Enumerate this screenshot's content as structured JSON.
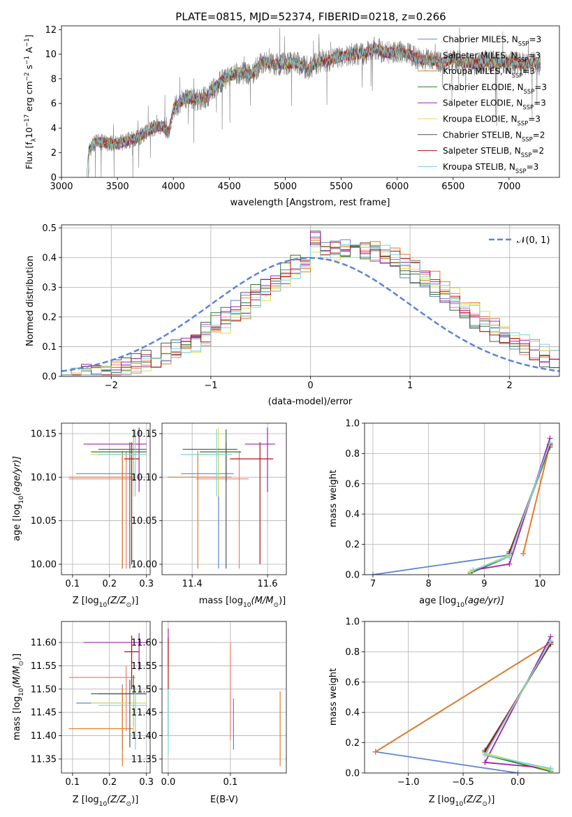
{
  "figure": {
    "title": "PLATE=0815, MJD=52374, FIBERID=0218, z=0.266"
  },
  "colors": {
    "chabrier_miles": "#5b84d6",
    "salpeter_miles": "#f07c70",
    "kroupa_miles": "#e07b23",
    "chabrier_elodie": "#2e7a2e",
    "salpeter_elodie": "#a020b0",
    "kroupa_elodie": "#d9df4a",
    "chabrier_stelib": "#555555",
    "salpeter_stelib": "#b01010",
    "kroupa_stelib": "#78d4e0",
    "grid": "#b0b0b0",
    "gauss": "#5b84d6"
  },
  "chart_data": [
    {
      "id": "spectrum",
      "type": "line",
      "xlabel": "wavelength [Angstrom, rest frame]",
      "ylabel_main": "Flux [f",
      "ylabel_sub": "λ",
      "ylabel_mid": "10",
      "ylabel_exp1": "−17",
      "ylabel_rest": " erg cm",
      "ylabel_exp2": "−2",
      "ylabel_rest2": " s",
      "ylabel_exp3": "−1",
      "ylabel_rest3": " A",
      "ylabel_exp4": "−1",
      "ylabel_end": "]",
      "xlim": [
        3000,
        7450
      ],
      "ylim": [
        0,
        12.3
      ],
      "xticks": [
        "3000",
        "3500",
        "4000",
        "4500",
        "5000",
        "5500",
        "6000",
        "6500",
        "7000"
      ],
      "yticks": [
        "0",
        "2",
        "4",
        "6",
        "8",
        "10",
        "12"
      ],
      "continuum": [
        [
          3225,
          0
        ],
        [
          3240,
          2.0
        ],
        [
          3300,
          2.9
        ],
        [
          3400,
          2.8
        ],
        [
          3500,
          2.7
        ],
        [
          3600,
          3.0
        ],
        [
          3700,
          3.3
        ],
        [
          3800,
          3.9
        ],
        [
          3900,
          4.2
        ],
        [
          3960,
          3.6
        ],
        [
          4000,
          5.6
        ],
        [
          4100,
          6.4
        ],
        [
          4200,
          6.3
        ],
        [
          4300,
          6.5
        ],
        [
          4400,
          7.6
        ],
        [
          4500,
          8.2
        ],
        [
          4600,
          8.5
        ],
        [
          4700,
          8.4
        ],
        [
          4800,
          9.4
        ],
        [
          4900,
          9.2
        ],
        [
          5000,
          9.2
        ],
        [
          5100,
          9.3
        ],
        [
          5200,
          8.8
        ],
        [
          5300,
          9.4
        ],
        [
          5400,
          9.5
        ],
        [
          5500,
          9.8
        ],
        [
          5600,
          10.0
        ],
        [
          5700,
          10.0
        ],
        [
          5800,
          10.5
        ],
        [
          5900,
          10.1
        ],
        [
          6000,
          10.2
        ],
        [
          6100,
          10.0
        ],
        [
          6200,
          9.6
        ],
        [
          6300,
          9.5
        ],
        [
          6400,
          9.3
        ],
        [
          6500,
          9.6
        ],
        [
          6600,
          9.3
        ],
        [
          6700,
          9.2
        ],
        [
          6800,
          9.4
        ],
        [
          6900,
          9.3
        ],
        [
          7000,
          9.4
        ],
        [
          7100,
          9.2
        ],
        [
          7200,
          9.3
        ],
        [
          7280,
          9.2
        ]
      ],
      "legend": [
        {
          "pre": "Chabrier MILES, N",
          "sub": "SSP",
          "post": "=3",
          "color": "chabrier_miles"
        },
        {
          "pre": "Salpeter MILES, N",
          "sub": "SSP",
          "post": "=3",
          "color": "salpeter_miles"
        },
        {
          "pre": "Kroupa MILES, N",
          "sub": "SSP",
          "post": "=3",
          "color": "kroupa_miles"
        },
        {
          "pre": "Chabrier ELODIE, N",
          "sub": "SSP",
          "post": "=3",
          "color": "chabrier_elodie"
        },
        {
          "pre": "Salpeter ELODIE, N",
          "sub": "SSP",
          "post": "=3",
          "color": "salpeter_elodie"
        },
        {
          "pre": "Kroupa ELODIE, N",
          "sub": "SSP",
          "post": "=3",
          "color": "kroupa_elodie"
        },
        {
          "pre": "Chabrier STELIB, N",
          "sub": "SSP",
          "post": "=2",
          "color": "chabrier_stelib"
        },
        {
          "pre": "Salpeter STELIB, N",
          "sub": "SSP",
          "post": "=2",
          "color": "salpeter_stelib"
        },
        {
          "pre": "Kroupa STELIB, N",
          "sub": "SSP",
          "post": "=3",
          "color": "kroupa_stelib"
        }
      ]
    },
    {
      "id": "residuals",
      "type": "histogram",
      "xlabel": "(data-model)/error",
      "ylabel": "Normed distribution",
      "xlim": [
        -2.5,
        2.5
      ],
      "ylim": [
        0,
        0.51
      ],
      "xticks": [
        "−2",
        "−1",
        "0",
        "1",
        "2"
      ],
      "yticks": [
        "0.0",
        "0.1",
        "0.2",
        "0.3",
        "0.4",
        "0.5"
      ],
      "legend_label": "𝒩(0, 1)",
      "bin_width": 0.1
    },
    {
      "id": "age_vs_Z",
      "type": "errorbar",
      "xlabel_pre": "Z [log",
      "xlabel_sub": "10",
      "xlabel_post": "(Z/Z",
      "xlabel_sun": "⊙",
      "xlabel_end": ")]",
      "ylabel_pre": "age  [log",
      "ylabel_sub": "10",
      "ylabel_post": "(age/yr)]",
      "xlim": [
        0.07,
        0.31
      ],
      "ylim": [
        9.988,
        10.162
      ],
      "xticks": [
        "0.1",
        "0.2",
        "0.3"
      ],
      "yticks": [
        "10.00",
        "10.05",
        "10.10",
        "10.15"
      ]
    },
    {
      "id": "age_vs_mass",
      "type": "errorbar",
      "xlabel_pre": "mass [log",
      "xlabel_sub": "10",
      "xlabel_post": "(M/M",
      "xlabel_sun": "⊙",
      "xlabel_end": ")]",
      "xlim": [
        11.32,
        11.65
      ],
      "ylim": [
        9.988,
        10.162
      ],
      "xticks": [
        "11.4",
        "11.6"
      ],
      "yticks": [
        "10.00",
        "10.05",
        "10.10",
        "10.15"
      ]
    },
    {
      "id": "weight_vs_age",
      "type": "line",
      "xlabel_pre": "age  [log",
      "xlabel_sub": "10",
      "xlabel_post": "(age/yr)]",
      "ylabel": "mass weight",
      "xlim": [
        6.85,
        10.35
      ],
      "ylim": [
        0,
        1.0
      ],
      "xticks": [
        "7",
        "8",
        "9",
        "10"
      ],
      "yticks": [
        "0.0",
        "0.2",
        "0.4",
        "0.6",
        "0.8",
        "1.0"
      ]
    },
    {
      "id": "mass_vs_Z",
      "type": "errorbar",
      "xlabel_pre": "Z [log",
      "xlabel_sub": "10",
      "xlabel_post": "(Z/Z",
      "xlabel_sun": "⊙",
      "xlabel_end": ")]",
      "ylabel_pre": "mass [log",
      "ylabel_sub": "10",
      "ylabel_post": "(M/M",
      "ylabel_sun": "⊙",
      "ylabel_end": ")]",
      "xlim": [
        0.07,
        0.31
      ],
      "ylim": [
        11.32,
        11.645
      ],
      "xticks": [
        "0.1",
        "0.2",
        "0.3"
      ],
      "yticks": [
        "11.35",
        "11.40",
        "11.45",
        "11.50",
        "11.55",
        "11.60"
      ]
    },
    {
      "id": "mass_vs_ebv",
      "type": "errorbar",
      "xlabel": "E(B-V)",
      "xlim": [
        -0.01,
        0.19
      ],
      "ylim": [
        11.32,
        11.645
      ],
      "xticks": [
        "0.0",
        "0.1"
      ],
      "yticks": [
        "11.35",
        "11.40",
        "11.45",
        "11.50",
        "11.55",
        "11.60"
      ]
    },
    {
      "id": "weight_vs_Z",
      "type": "line",
      "xlabel_pre": "Z [log",
      "xlabel_sub": "10",
      "xlabel_post": "(Z/Z",
      "xlabel_sun": "⊙",
      "xlabel_end": ")]",
      "ylabel": "mass weight",
      "xlim": [
        -1.4,
        0.38
      ],
      "ylim": [
        0,
        1.0
      ],
      "xticks": [
        "−1.0",
        "−0.5",
        "0.0"
      ],
      "yticks": [
        "0.0",
        "0.2",
        "0.4",
        "0.6",
        "0.8",
        "1.0"
      ]
    }
  ],
  "models": [
    {
      "key": "chabrier_miles",
      "Z": 0.235,
      "Zlo": 0.11,
      "Zhi": 0.26,
      "age": 10.104,
      "ageLo": 9.995,
      "ageHi": 10.13,
      "mass": 11.47,
      "massLo": 11.37,
      "massHi": 11.51,
      "ebv": 0.105,
      "ebvLo": 11.37,
      "ebvHi": 11.48,
      "wa": [
        [
          7.0,
          0.0
        ],
        [
          9.45,
          0.13
        ],
        [
          10.18,
          0.84
        ]
      ],
      "wz": [
        [
          0.0,
          0.0
        ],
        [
          -1.3,
          0.14
        ],
        [
          0.3,
          0.86
        ]
      ]
    },
    {
      "key": "salpeter_miles",
      "Z": 0.245,
      "Zlo": 0.09,
      "Zhi": 0.27,
      "age": 10.098,
      "ageLo": 9.995,
      "ageHi": 10.13,
      "mass": 11.525,
      "massLo": 11.41,
      "massHi": 11.55,
      "ebv": 0.1,
      "ebvLo": 11.39,
      "ebvHi": 11.6,
      "wa": [
        [
          9.7,
          0.14
        ],
        [
          10.18,
          0.86
        ]
      ],
      "wz": [
        [
          -1.3,
          0.14
        ],
        [
          0.3,
          0.86
        ]
      ]
    },
    {
      "key": "kroupa_miles",
      "Z": 0.235,
      "Zlo": 0.09,
      "Zhi": 0.265,
      "age": 10.1,
      "ageLo": 9.995,
      "ageHi": 10.13,
      "mass": 11.415,
      "massLo": 11.335,
      "massHi": 11.505,
      "ebv": 0.18,
      "ebvLo": 11.335,
      "ebvHi": 11.495,
      "wa": [
        [
          9.7,
          0.14
        ],
        [
          10.18,
          0.86
        ]
      ],
      "wz": [
        [
          -1.3,
          0.14
        ],
        [
          0.3,
          0.86
        ]
      ]
    },
    {
      "key": "chabrier_elodie",
      "Z": 0.265,
      "Zlo": 0.15,
      "Zhi": 0.3,
      "age": 10.129,
      "ageLo": 10.095,
      "ageHi": 10.155,
      "mass": 11.49,
      "massLo": 11.42,
      "massHi": 11.53,
      "ebv": 0.0,
      "ebvLo": 11.45,
      "ebvHi": 11.5,
      "wa": [
        [
          8.75,
          0.01
        ],
        [
          9.45,
          0.12
        ],
        [
          10.18,
          0.87
        ]
      ],
      "wz": [
        [
          0.3,
          0.01
        ],
        [
          -0.3,
          0.12
        ],
        [
          0.3,
          0.87
        ]
      ]
    },
    {
      "key": "salpeter_elodie",
      "Z": 0.28,
      "Zlo": 0.13,
      "Zhi": 0.3,
      "age": 10.138,
      "ageLo": 10.083,
      "ageHi": 10.157,
      "mass": 11.6,
      "massLo": 11.54,
      "massHi": 11.62,
      "ebv": 0.0,
      "ebvLo": 11.55,
      "ebvHi": 11.63,
      "wa": [
        [
          8.8,
          0.03
        ],
        [
          9.45,
          0.07
        ],
        [
          10.18,
          0.9
        ]
      ],
      "wz": [
        [
          0.3,
          0.03
        ],
        [
          -0.3,
          0.07
        ],
        [
          0.3,
          0.9
        ]
      ]
    },
    {
      "key": "kroupa_elodie",
      "Z": 0.265,
      "Zlo": 0.15,
      "Zhi": 0.3,
      "age": 10.126,
      "ageLo": 10.078,
      "ageHi": 10.157,
      "mass": 11.47,
      "massLo": 11.4,
      "massHi": 11.5,
      "ebv": 0.0,
      "ebvLo": 11.4,
      "ebvHi": 11.47,
      "wa": [
        [
          8.75,
          0.02
        ],
        [
          9.45,
          0.13
        ],
        [
          10.18,
          0.85
        ]
      ],
      "wz": [
        [
          0.3,
          0.02
        ],
        [
          -0.3,
          0.13
        ],
        [
          0.3,
          0.85
        ]
      ]
    },
    {
      "key": "chabrier_stelib",
      "Z": 0.255,
      "Zlo": 0.17,
      "Zhi": 0.3,
      "age": 10.132,
      "ageLo": 9.995,
      "ageHi": 10.14,
      "mass": 11.49,
      "massLo": 11.375,
      "massHi": 11.52,
      "ebv": 0.0,
      "ebvLo": 11.4,
      "ebvHi": 11.5,
      "wa": [
        [
          9.45,
          0.15
        ],
        [
          10.18,
          0.85
        ]
      ],
      "wz": [
        [
          -0.3,
          0.15
        ],
        [
          0.3,
          0.85
        ]
      ]
    },
    {
      "key": "salpeter_stelib",
      "Z": 0.26,
      "Zlo": 0.24,
      "Zhi": 0.28,
      "age": 10.121,
      "ageLo": 10.0,
      "ageHi": 10.14,
      "mass": 11.58,
      "massLo": 11.5,
      "massHi": 11.615,
      "ebv": 0.0,
      "ebvLo": 11.5,
      "ebvHi": 11.61,
      "wa": [
        [
          9.45,
          0.14
        ],
        [
          10.18,
          0.86
        ]
      ],
      "wz": [
        [
          -0.3,
          0.14
        ],
        [
          0.3,
          0.86
        ]
      ]
    },
    {
      "key": "kroupa_stelib",
      "Z": 0.27,
      "Zlo": 0.17,
      "Zhi": 0.3,
      "age": 10.126,
      "ageLo": 10.078,
      "ageHi": 10.155,
      "mass": 11.465,
      "massLo": 11.37,
      "massHi": 11.505,
      "ebv": 0.0,
      "ebvLo": 11.36,
      "ebvHi": 11.5,
      "wa": [
        [
          8.8,
          0.03
        ],
        [
          9.45,
          0.12
        ],
        [
          10.18,
          0.87
        ]
      ],
      "wz": [
        [
          0.3,
          0.03
        ],
        [
          -0.3,
          0.12
        ],
        [
          0.3,
          0.87
        ]
      ]
    }
  ]
}
